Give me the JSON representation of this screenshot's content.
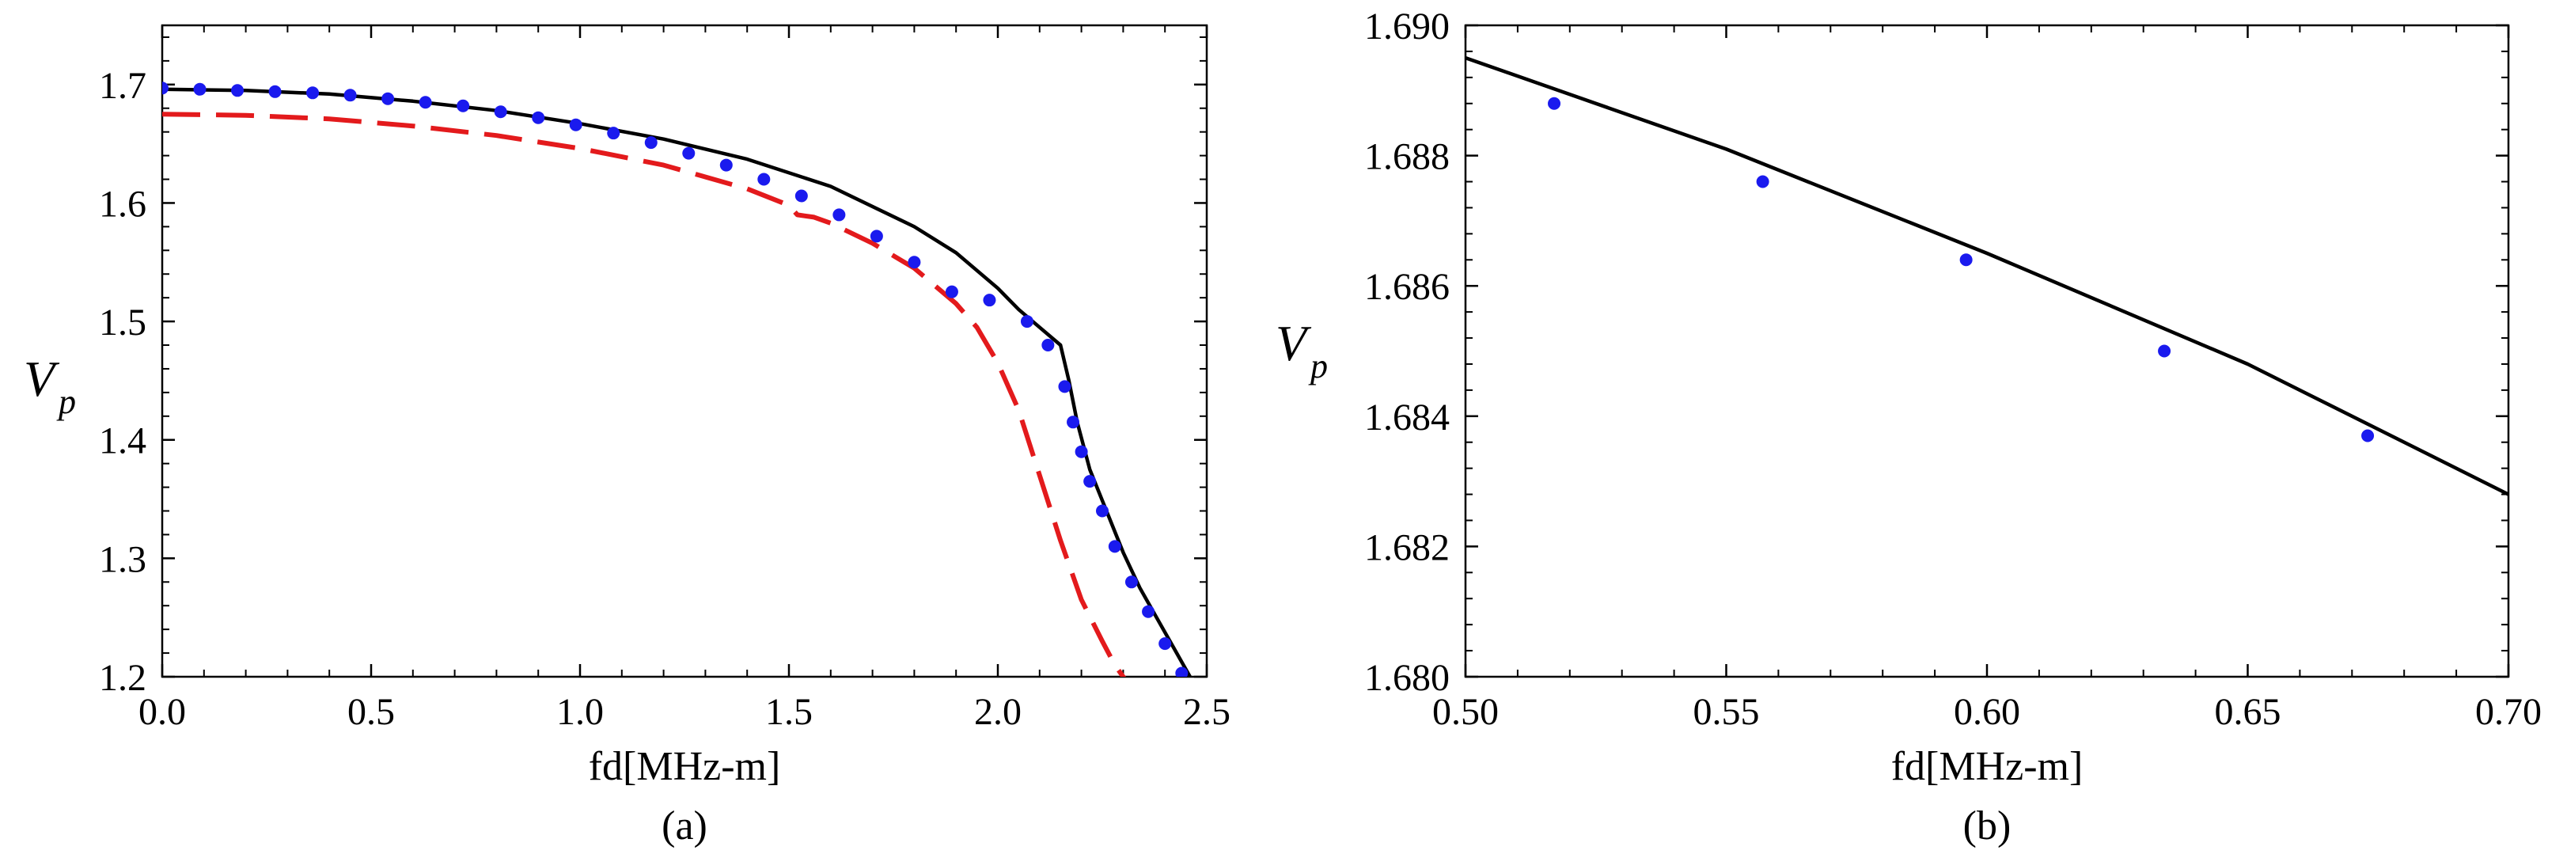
{
  "chart_data": [
    {
      "type": "line",
      "panel": "a",
      "caption": "(a)",
      "xlabel": "fd[MHz-m]",
      "ylabel_main": "V",
      "ylabel_sub": "p",
      "xlim": [
        0.0,
        2.5
      ],
      "ylim": [
        1.2,
        1.75
      ],
      "xticks": [
        0.0,
        0.5,
        1.0,
        1.5,
        2.0,
        2.5
      ],
      "xtick_labels": [
        "0.0",
        "0.5",
        "1.0",
        "1.5",
        "2.0",
        "2.5"
      ],
      "yticks": [
        1.2,
        1.3,
        1.4,
        1.5,
        1.6,
        1.7
      ],
      "ytick_labels": [
        "1.2",
        "1.3",
        "1.4",
        "1.5",
        "1.6",
        "1.7"
      ],
      "series": [
        {
          "name": "solid",
          "style": "solid",
          "color": "#000000",
          "x": [
            0.0,
            0.2,
            0.4,
            0.6,
            0.8,
            1.0,
            1.2,
            1.4,
            1.6,
            1.8,
            1.9,
            2.0,
            2.05,
            2.1,
            2.15,
            2.17,
            2.19,
            2.22,
            2.26,
            2.3,
            2.34,
            2.38,
            2.42,
            2.46
          ],
          "y": [
            1.696,
            1.695,
            1.692,
            1.686,
            1.678,
            1.667,
            1.654,
            1.637,
            1.614,
            1.58,
            1.558,
            1.528,
            1.51,
            1.495,
            1.48,
            1.45,
            1.415,
            1.375,
            1.34,
            1.305,
            1.275,
            1.25,
            1.225,
            1.2
          ]
        },
        {
          "name": "dashed",
          "style": "dashed",
          "color": "#e31a1c",
          "x": [
            0.0,
            0.2,
            0.4,
            0.6,
            0.8,
            1.0,
            1.2,
            1.4,
            1.5,
            1.52,
            1.56,
            1.6,
            1.7,
            1.8,
            1.9,
            1.95,
            2.0,
            2.05,
            2.1,
            2.15,
            2.2,
            2.25,
            2.28,
            2.31
          ],
          "y": [
            1.675,
            1.674,
            1.671,
            1.665,
            1.657,
            1.646,
            1.632,
            1.612,
            1.598,
            1.59,
            1.588,
            1.583,
            1.566,
            1.545,
            1.515,
            1.495,
            1.465,
            1.425,
            1.37,
            1.315,
            1.265,
            1.23,
            1.21,
            1.195
          ]
        },
        {
          "name": "dots",
          "style": "markers",
          "color": "#1a1aee",
          "x": [
            0.0,
            0.09,
            0.18,
            0.27,
            0.36,
            0.45,
            0.54,
            0.63,
            0.72,
            0.81,
            0.9,
            0.99,
            1.08,
            1.17,
            1.26,
            1.35,
            1.44,
            1.53,
            1.62,
            1.71,
            1.8,
            1.89,
            1.98,
            2.07,
            2.12,
            2.16,
            2.18,
            2.2,
            2.22,
            2.25,
            2.28,
            2.32,
            2.36,
            2.4,
            2.44
          ],
          "y": [
            1.697,
            1.696,
            1.695,
            1.694,
            1.693,
            1.691,
            1.688,
            1.685,
            1.682,
            1.677,
            1.672,
            1.666,
            1.659,
            1.651,
            1.642,
            1.632,
            1.62,
            1.606,
            1.59,
            1.572,
            1.55,
            1.525,
            1.518,
            1.5,
            1.48,
            1.445,
            1.415,
            1.39,
            1.365,
            1.34,
            1.31,
            1.28,
            1.255,
            1.228,
            1.203
          ]
        }
      ]
    },
    {
      "type": "line",
      "panel": "b",
      "caption": "(b)",
      "xlabel": "fd[MHz-m]",
      "ylabel_main": "V",
      "ylabel_sub": "p",
      "xlim": [
        0.5,
        0.7
      ],
      "ylim": [
        1.68,
        1.69
      ],
      "xticks": [
        0.5,
        0.55,
        0.6,
        0.65,
        0.7
      ],
      "xtick_labels": [
        "0.50",
        "0.55",
        "0.60",
        "0.65",
        "0.70"
      ],
      "yticks": [
        1.68,
        1.682,
        1.684,
        1.686,
        1.688,
        1.69
      ],
      "ytick_labels": [
        "1.680",
        "1.682",
        "1.684",
        "1.686",
        "1.688",
        "1.690"
      ],
      "series": [
        {
          "name": "solid",
          "style": "solid",
          "color": "#000000",
          "x": [
            0.5,
            0.55,
            0.6,
            0.65,
            0.7
          ],
          "y": [
            1.6895,
            1.6881,
            1.6865,
            1.6848,
            1.6828
          ]
        },
        {
          "name": "dots",
          "style": "markers",
          "color": "#1a1aee",
          "x": [
            0.517,
            0.557,
            0.596,
            0.634,
            0.673
          ],
          "y": [
            1.6888,
            1.6876,
            1.6864,
            1.685,
            1.6837
          ]
        }
      ]
    }
  ]
}
